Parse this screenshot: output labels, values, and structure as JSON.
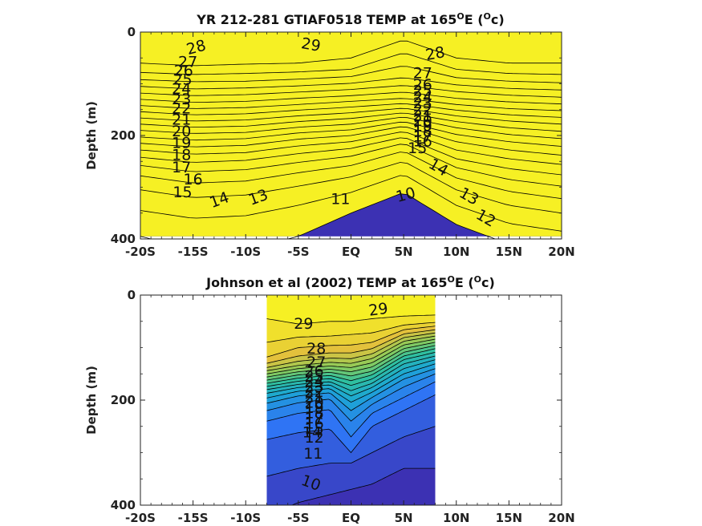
{
  "chart_data": [
    {
      "type": "heatmap",
      "title_main": "YR 212-281 GTIAF0518 TEMP at 165",
      "title_sup": "O",
      "title_mid": "E (",
      "title_unit_sup": "O",
      "title_end": "c)",
      "ylabel": "Depth (m)",
      "xlim": [
        -20,
        20
      ],
      "ylim": [
        0,
        400
      ],
      "y_reversed": true,
      "data_extent_x": [
        -20,
        20
      ],
      "data_extent_y": [
        0,
        395
      ],
      "xtick_values": [
        -20,
        -15,
        -10,
        -5,
        0,
        5,
        10,
        15,
        20
      ],
      "xtick_labels": [
        "-20S",
        "-15S",
        "-10S",
        "-5S",
        "EQ",
        "5N",
        "10N",
        "15N",
        "20N"
      ],
      "ytick_values": [
        0,
        200,
        400
      ],
      "ytick_labels": [
        "0",
        "200",
        "400"
      ],
      "colormap": [
        "#3e26a8",
        "#2f74f4",
        "#1ca7d5",
        "#2fbfa0",
        "#8ccc5a",
        "#e3c13c",
        "#f9f820"
      ],
      "crange": [
        9,
        30
      ],
      "levels": [
        10,
        11,
        12,
        13,
        14,
        15,
        16,
        17,
        18,
        19,
        20,
        21,
        22,
        23,
        24,
        25,
        26,
        27,
        28,
        29
      ],
      "profiles_x": [
        -20,
        -15,
        -10,
        -5,
        0,
        5,
        10,
        15,
        20
      ],
      "profiles_depth": [
        [
          60,
          78,
          92,
          105,
          118,
          130,
          142,
          154,
          166,
          178,
          190,
          203,
          215,
          228,
          242,
          258,
          278,
          305,
          345,
          395
        ],
        [
          65,
          82,
          96,
          110,
          123,
          136,
          148,
          160,
          172,
          184,
          196,
          209,
          222,
          236,
          252,
          270,
          292,
          320,
          360,
          420
        ],
        [
          62,
          80,
          95,
          108,
          121,
          134,
          146,
          158,
          170,
          182,
          194,
          206,
          219,
          233,
          248,
          266,
          288,
          315,
          355,
          420
        ],
        [
          60,
          77,
          91,
          104,
          116,
          128,
          140,
          151,
          162,
          173,
          184,
          195,
          207,
          220,
          235,
          252,
          272,
          298,
          335,
          395
        ],
        [
          50,
          72,
          86,
          99,
          111,
          123,
          134,
          145,
          156,
          167,
          178,
          189,
          200,
          212,
          225,
          240,
          258,
          280,
          310,
          350
        ],
        [
          15,
          40,
          65,
          88,
          103,
          116,
          128,
          138,
          147,
          156,
          164,
          173,
          182,
          192,
          203,
          215,
          230,
          250,
          275,
          310
        ],
        [
          50,
          72,
          88,
          102,
          115,
          128,
          140,
          151,
          162,
          173,
          185,
          198,
          212,
          228,
          245,
          262,
          282,
          305,
          335,
          372
        ],
        [
          60,
          80,
          95,
          109,
          122,
          135,
          148,
          160,
          172,
          185,
          198,
          212,
          228,
          245,
          264,
          285,
          308,
          335,
          370,
          410
        ],
        [
          60,
          82,
          98,
          112,
          126,
          139,
          152,
          165,
          178,
          192,
          206,
          221,
          238,
          256,
          276,
          298,
          322,
          350,
          385,
          420
        ]
      ],
      "contour_labels": [
        {
          "text": "29",
          "x": -3.8,
          "y": 25,
          "angle": 10
        },
        {
          "text": "28",
          "x": -14.7,
          "y": 30,
          "angle": -15
        },
        {
          "text": "27",
          "x": -15.5,
          "y": 58,
          "angle": 0
        },
        {
          "text": "26",
          "x": -15.9,
          "y": 75,
          "angle": 0
        },
        {
          "text": "25",
          "x": -16.0,
          "y": 92,
          "angle": 0
        },
        {
          "text": "24",
          "x": -16.1,
          "y": 110,
          "angle": 0
        },
        {
          "text": "23",
          "x": -16.1,
          "y": 130,
          "angle": 0
        },
        {
          "text": "22",
          "x": -16.1,
          "y": 148,
          "angle": 0
        },
        {
          "text": "21",
          "x": -16.1,
          "y": 170,
          "angle": 0
        },
        {
          "text": "20",
          "x": -16.1,
          "y": 192,
          "angle": 0
        },
        {
          "text": "19",
          "x": -16.1,
          "y": 215,
          "angle": 0
        },
        {
          "text": "18",
          "x": -16.1,
          "y": 238,
          "angle": 0
        },
        {
          "text": "17",
          "x": -16.1,
          "y": 262,
          "angle": 0
        },
        {
          "text": "16",
          "x": -15.0,
          "y": 285,
          "angle": 0
        },
        {
          "text": "15",
          "x": -16.0,
          "y": 310,
          "angle": 0
        },
        {
          "text": "14",
          "x": -12.5,
          "y": 325,
          "angle": -20
        },
        {
          "text": "13",
          "x": -8.8,
          "y": 320,
          "angle": -20
        },
        {
          "text": "11",
          "x": -1.0,
          "y": 323,
          "angle": 0
        },
        {
          "text": "10",
          "x": 5.2,
          "y": 315,
          "angle": -15
        },
        {
          "text": "28",
          "x": 8.0,
          "y": 42,
          "angle": -10
        },
        {
          "text": "27",
          "x": 6.8,
          "y": 80,
          "angle": 0
        },
        {
          "text": "26",
          "x": 6.8,
          "y": 102,
          "angle": 0
        },
        {
          "text": "25",
          "x": 6.8,
          "y": 114,
          "angle": 0
        },
        {
          "text": "24",
          "x": 6.8,
          "y": 126,
          "angle": 0
        },
        {
          "text": "23",
          "x": 6.8,
          "y": 138,
          "angle": 0
        },
        {
          "text": "22",
          "x": 6.8,
          "y": 150,
          "angle": 0
        },
        {
          "text": "21",
          "x": 6.8,
          "y": 162,
          "angle": 0
        },
        {
          "text": "20",
          "x": 6.8,
          "y": 172,
          "angle": 0
        },
        {
          "text": "19",
          "x": 6.8,
          "y": 182,
          "angle": 0
        },
        {
          "text": "18",
          "x": 6.8,
          "y": 192,
          "angle": 0
        },
        {
          "text": "17",
          "x": 6.8,
          "y": 202,
          "angle": 0
        },
        {
          "text": "16",
          "x": 6.8,
          "y": 212,
          "angle": 0
        },
        {
          "text": "15",
          "x": 6.3,
          "y": 225,
          "angle": 0
        },
        {
          "text": "14",
          "x": 8.3,
          "y": 262,
          "angle": 30
        },
        {
          "text": "13",
          "x": 11.2,
          "y": 318,
          "angle": 30
        },
        {
          "text": "12",
          "x": 12.8,
          "y": 360,
          "angle": 30
        }
      ]
    },
    {
      "type": "heatmap",
      "title_main": "Johnson et al (2002) TEMP at 165",
      "title_sup": "O",
      "title_mid": "E (",
      "title_unit_sup": "O",
      "title_end": "c)",
      "ylabel": "Depth (m)",
      "xlim": [
        -20,
        20
      ],
      "ylim": [
        0,
        400
      ],
      "y_reversed": true,
      "data_extent_x": [
        -8,
        8
      ],
      "data_extent_y": [
        0,
        400
      ],
      "xtick_values": [
        -20,
        -15,
        -10,
        -5,
        0,
        5,
        10,
        15,
        20
      ],
      "xtick_labels": [
        "-20S",
        "-15S",
        "-10S",
        "-5S",
        "EQ",
        "5N",
        "10N",
        "15N",
        "20N"
      ],
      "ytick_values": [
        0,
        200,
        400
      ],
      "ytick_labels": [
        "0",
        "200",
        "400"
      ],
      "colormap": [
        "#3e26a8",
        "#2f74f4",
        "#1ca7d5",
        "#2fbfa0",
        "#8ccc5a",
        "#e3c13c",
        "#f9f820"
      ],
      "crange": [
        9,
        30
      ],
      "levels": [
        10,
        11,
        12,
        13,
        14,
        15,
        16,
        17,
        18,
        19,
        20,
        21,
        22,
        23,
        24,
        25,
        26,
        27,
        28,
        29
      ],
      "profiles_x": [
        -8,
        -5,
        -2,
        0,
        2,
        5,
        8
      ],
      "profiles_depth": [
        [
          420,
          345,
          275,
          240,
          220,
          206,
          196,
          187,
          180,
          174,
          168,
          162,
          156,
          150,
          144,
          138,
          130,
          118,
          90,
          45
        ],
        [
          395,
          330,
          262,
          225,
          205,
          192,
          183,
          176,
          170,
          164,
          158,
          152,
          146,
          140,
          134,
          126,
          116,
          100,
          80,
          55
        ],
        [
          380,
          320,
          255,
          218,
          198,
          186,
          178,
          171,
          165,
          159,
          153,
          147,
          141,
          135,
          128,
          120,
          110,
          96,
          78,
          50
        ],
        [
          370,
          320,
          300,
          270,
          240,
          220,
          204,
          192,
          182,
          172,
          163,
          154,
          146,
          138,
          130,
          121,
          110,
          95,
          75,
          50
        ],
        [
          360,
          300,
          250,
          225,
          208,
          195,
          185,
          176,
          168,
          160,
          152,
          145,
          137,
          129,
          121,
          112,
          102,
          90,
          72,
          45
        ],
        [
          330,
          270,
          220,
          195,
          175,
          160,
          150,
          140,
          131,
          123,
          116,
          109,
          102,
          95,
          88,
          81,
          74,
          66,
          57,
          40
        ],
        [
          330,
          250,
          190,
          165,
          150,
          140,
          131,
          123,
          116,
          109,
          102,
          96,
          90,
          84,
          78,
          72,
          66,
          59,
          52,
          38
        ]
      ],
      "contour_labels": [
        {
          "text": "29",
          "x": -4.5,
          "y": 55,
          "angle": 0
        },
        {
          "text": "29",
          "x": 2.6,
          "y": 28,
          "angle": -8
        },
        {
          "text": "28",
          "x": -3.3,
          "y": 102,
          "angle": 0
        },
        {
          "text": "27",
          "x": -3.3,
          "y": 128,
          "angle": 0
        },
        {
          "text": "26",
          "x": -3.5,
          "y": 145,
          "angle": 0
        },
        {
          "text": "25",
          "x": -3.5,
          "y": 155,
          "angle": 0
        },
        {
          "text": "24",
          "x": -3.5,
          "y": 165,
          "angle": 0
        },
        {
          "text": "23",
          "x": -3.5,
          "y": 175,
          "angle": 0
        },
        {
          "text": "22",
          "x": -3.5,
          "y": 185,
          "angle": 0
        },
        {
          "text": "21",
          "x": -3.5,
          "y": 195,
          "angle": 0
        },
        {
          "text": "20",
          "x": -3.5,
          "y": 205,
          "angle": 0
        },
        {
          "text": "19",
          "x": -3.5,
          "y": 215,
          "angle": 0
        },
        {
          "text": "18",
          "x": -3.5,
          "y": 225,
          "angle": 0
        },
        {
          "text": "17",
          "x": -3.5,
          "y": 235,
          "angle": 0
        },
        {
          "text": "16",
          "x": -3.5,
          "y": 245,
          "angle": 0
        },
        {
          "text": "15",
          "x": -3.5,
          "y": 255,
          "angle": 0
        },
        {
          "text": "14",
          "x": -3.7,
          "y": 262,
          "angle": 0
        },
        {
          "text": "12",
          "x": -3.5,
          "y": 272,
          "angle": 0
        },
        {
          "text": "11",
          "x": -3.6,
          "y": 302,
          "angle": 0
        },
        {
          "text": "10",
          "x": -3.8,
          "y": 358,
          "angle": 20
        }
      ]
    }
  ]
}
